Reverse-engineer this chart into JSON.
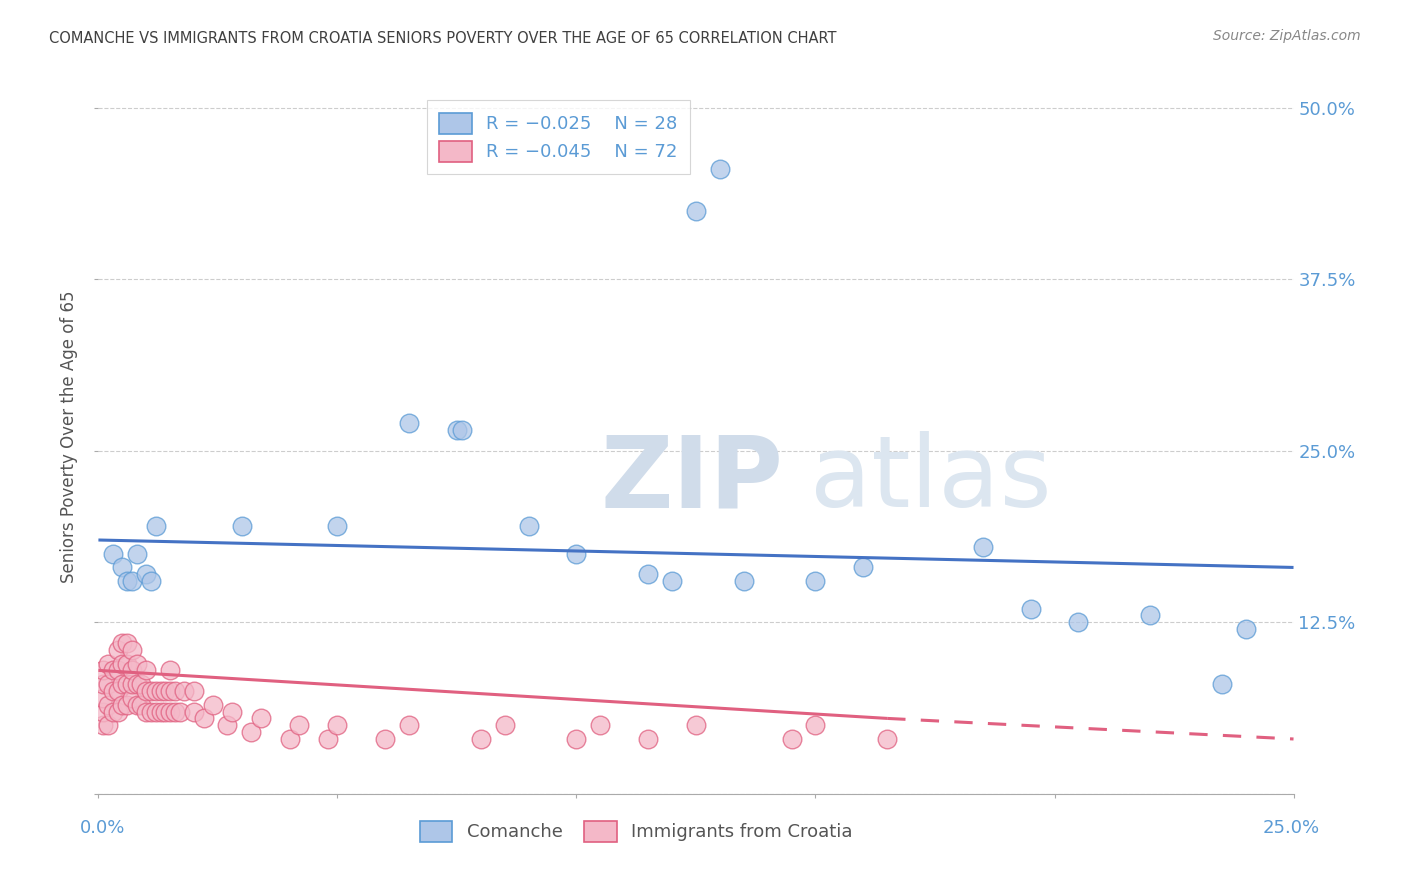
{
  "title": "COMANCHE VS IMMIGRANTS FROM CROATIA SENIORS POVERTY OVER THE AGE OF 65 CORRELATION CHART",
  "source": "Source: ZipAtlas.com",
  "ylabel": "Seniors Poverty Over the Age of 65",
  "xlim": [
    0.0,
    0.25
  ],
  "ylim": [
    0.0,
    0.52
  ],
  "yticks": [
    0.0,
    0.125,
    0.25,
    0.375,
    0.5
  ],
  "ytick_labels": [
    "",
    "12.5%",
    "25.0%",
    "37.5%",
    "50.0%"
  ],
  "xticks": [
    0.0,
    0.05,
    0.1,
    0.15,
    0.2,
    0.25
  ],
  "comanche_color": "#aec6e8",
  "comanche_edge_color": "#5b9bd5",
  "croatia_color": "#f4b8c8",
  "croatia_edge_color": "#e06080",
  "trend_comanche_color": "#4472c4",
  "trend_croatia_color": "#e06080",
  "watermark_zip": "ZIP",
  "watermark_atlas": "atlas",
  "background_color": "#ffffff",
  "grid_color": "#c8c8c8",
  "title_color": "#404040",
  "axis_label_color": "#5b9bd5",
  "right_axis_color": "#5b9bd5",
  "comanche_x": [
    0.003,
    0.005,
    0.006,
    0.007,
    0.008,
    0.01,
    0.011,
    0.012,
    0.03,
    0.05,
    0.065,
    0.075,
    0.076,
    0.09,
    0.1,
    0.115,
    0.12,
    0.125,
    0.13,
    0.135,
    0.15,
    0.16,
    0.185,
    0.195,
    0.205,
    0.22,
    0.235,
    0.24
  ],
  "comanche_y": [
    0.175,
    0.165,
    0.155,
    0.155,
    0.175,
    0.16,
    0.155,
    0.195,
    0.195,
    0.195,
    0.27,
    0.265,
    0.265,
    0.195,
    0.175,
    0.16,
    0.155,
    0.425,
    0.455,
    0.155,
    0.155,
    0.165,
    0.18,
    0.135,
    0.125,
    0.13,
    0.08,
    0.12
  ],
  "croatia_x": [
    0.001,
    0.001,
    0.001,
    0.001,
    0.001,
    0.002,
    0.002,
    0.002,
    0.002,
    0.003,
    0.003,
    0.003,
    0.004,
    0.004,
    0.004,
    0.004,
    0.005,
    0.005,
    0.005,
    0.005,
    0.006,
    0.006,
    0.006,
    0.006,
    0.007,
    0.007,
    0.007,
    0.007,
    0.008,
    0.008,
    0.008,
    0.009,
    0.009,
    0.01,
    0.01,
    0.01,
    0.011,
    0.011,
    0.012,
    0.012,
    0.013,
    0.013,
    0.014,
    0.014,
    0.015,
    0.015,
    0.015,
    0.016,
    0.016,
    0.017,
    0.018,
    0.02,
    0.02,
    0.022,
    0.024,
    0.027,
    0.028,
    0.032,
    0.034,
    0.04,
    0.042,
    0.048,
    0.05,
    0.06,
    0.065,
    0.08,
    0.085,
    0.1,
    0.105,
    0.115,
    0.125,
    0.145,
    0.15,
    0.165
  ],
  "croatia_y": [
    0.05,
    0.06,
    0.07,
    0.08,
    0.09,
    0.05,
    0.065,
    0.08,
    0.095,
    0.06,
    0.075,
    0.09,
    0.06,
    0.075,
    0.09,
    0.105,
    0.065,
    0.08,
    0.095,
    0.11,
    0.065,
    0.08,
    0.095,
    0.11,
    0.07,
    0.08,
    0.09,
    0.105,
    0.065,
    0.08,
    0.095,
    0.065,
    0.08,
    0.06,
    0.075,
    0.09,
    0.06,
    0.075,
    0.06,
    0.075,
    0.06,
    0.075,
    0.06,
    0.075,
    0.06,
    0.075,
    0.09,
    0.06,
    0.075,
    0.06,
    0.075,
    0.06,
    0.075,
    0.055,
    0.065,
    0.05,
    0.06,
    0.045,
    0.055,
    0.04,
    0.05,
    0.04,
    0.05,
    0.04,
    0.05,
    0.04,
    0.05,
    0.04,
    0.05,
    0.04,
    0.05,
    0.04,
    0.05,
    0.04
  ]
}
